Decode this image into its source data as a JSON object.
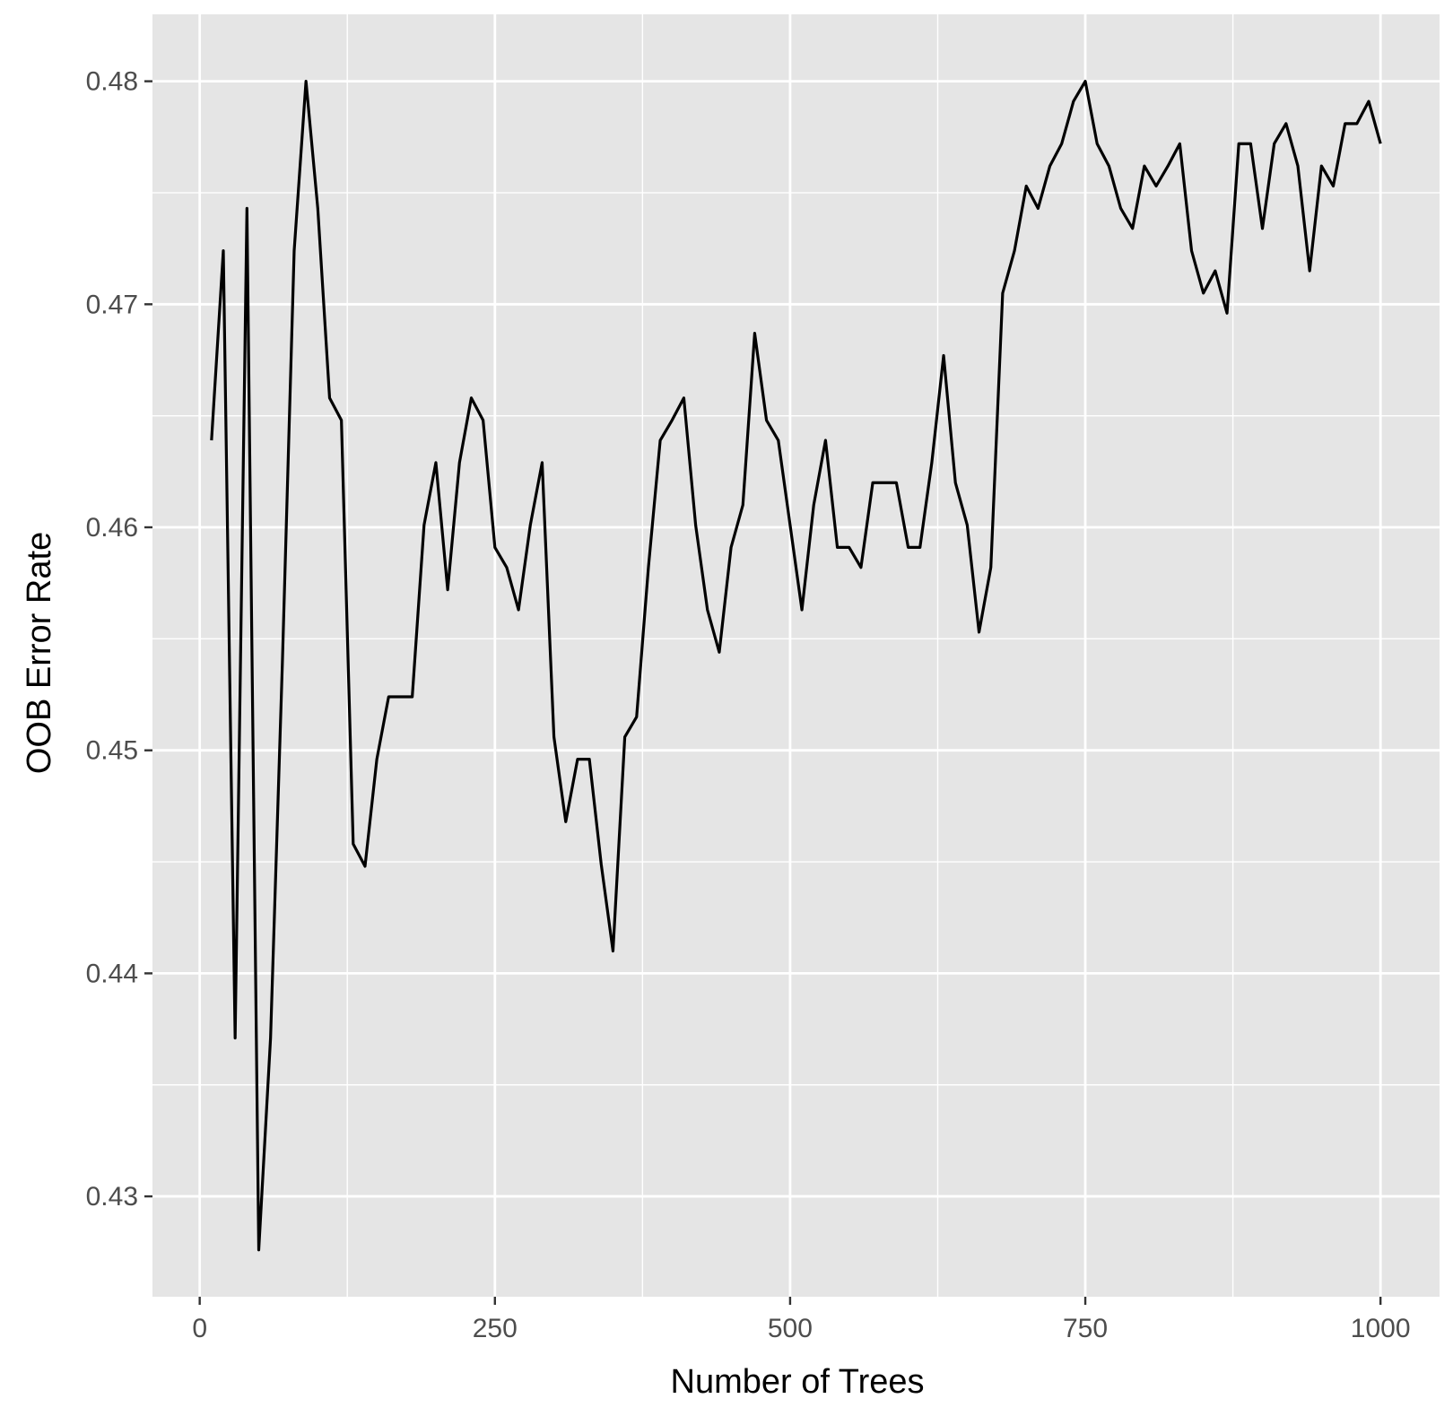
{
  "chart_data": {
    "type": "line",
    "title": "",
    "xlabel": "Number of Trees",
    "ylabel": "OOB Error Rate",
    "xlim": [
      -40,
      1050
    ],
    "ylim": [
      0.4255,
      0.483
    ],
    "x_ticks": [
      0,
      250,
      500,
      750,
      1000
    ],
    "x_tick_labels": [
      "0",
      "250",
      "500",
      "750",
      "1000"
    ],
    "x_minor_ticks": [
      125,
      375,
      625,
      875
    ],
    "y_ticks": [
      0.43,
      0.44,
      0.45,
      0.46,
      0.47,
      0.48
    ],
    "y_tick_labels": [
      "0.43",
      "0.44",
      "0.45",
      "0.46",
      "0.47",
      "0.48"
    ],
    "y_minor_ticks": [
      0.435,
      0.445,
      0.455,
      0.465,
      0.475
    ],
    "grid": true,
    "panel_color": "#e5e5e5",
    "grid_color": "#ffffff",
    "line_color": "#000000",
    "series": [
      {
        "x": [
          10,
          20,
          30,
          40,
          50,
          60,
          70,
          80,
          90,
          100,
          110,
          120,
          130,
          140,
          150,
          160,
          170,
          180,
          190,
          200,
          210,
          220,
          230,
          240,
          250,
          260,
          270,
          280,
          290,
          300,
          310,
          320,
          330,
          340,
          350,
          360,
          370,
          380,
          390,
          400,
          410,
          420,
          430,
          440,
          450,
          460,
          470,
          480,
          490,
          500,
          510,
          520,
          530,
          540,
          550,
          560,
          570,
          580,
          590,
          600,
          610,
          620,
          630,
          640,
          650,
          660,
          670,
          680,
          690,
          700,
          710,
          720,
          730,
          740,
          750,
          760,
          770,
          780,
          790,
          800,
          810,
          820,
          830,
          840,
          850,
          860,
          870,
          880,
          890,
          900,
          910,
          920,
          930,
          940,
          950,
          960,
          970,
          980,
          990,
          1000
        ],
        "y": [
          0.4639,
          0.4724,
          0.4371,
          0.4743,
          0.4276,
          0.4371,
          0.4539,
          0.4724,
          0.48,
          0.4743,
          0.4658,
          0.4648,
          0.4458,
          0.4448,
          0.4496,
          0.4524,
          0.4524,
          0.4524,
          0.4601,
          0.4629,
          0.4572,
          0.4629,
          0.4658,
          0.4648,
          0.4591,
          0.4582,
          0.4563,
          0.4601,
          0.4629,
          0.4506,
          0.4468,
          0.4496,
          0.4496,
          0.4449,
          0.441,
          0.4506,
          0.4515,
          0.4582,
          0.4639,
          0.4648,
          0.4658,
          0.4601,
          0.4563,
          0.4544,
          0.4591,
          0.461,
          0.4687,
          0.4648,
          0.4639,
          0.4601,
          0.4563,
          0.461,
          0.4639,
          0.4591,
          0.4591,
          0.4582,
          0.462,
          0.462,
          0.462,
          0.4591,
          0.4591,
          0.4629,
          0.4677,
          0.462,
          0.4601,
          0.4553,
          0.4582,
          0.4705,
          0.4724,
          0.4753,
          0.4743,
          0.4762,
          0.4772,
          0.4791,
          0.48,
          0.4772,
          0.4762,
          0.4743,
          0.4734,
          0.4762,
          0.4753,
          0.4762,
          0.4772,
          0.4724,
          0.4705,
          0.4715,
          0.4696,
          0.4772,
          0.4772,
          0.4734,
          0.4772,
          0.4781,
          0.4762,
          0.4715,
          0.4762,
          0.4753,
          0.4781,
          0.4781,
          0.4791,
          0.4772
        ]
      }
    ]
  }
}
